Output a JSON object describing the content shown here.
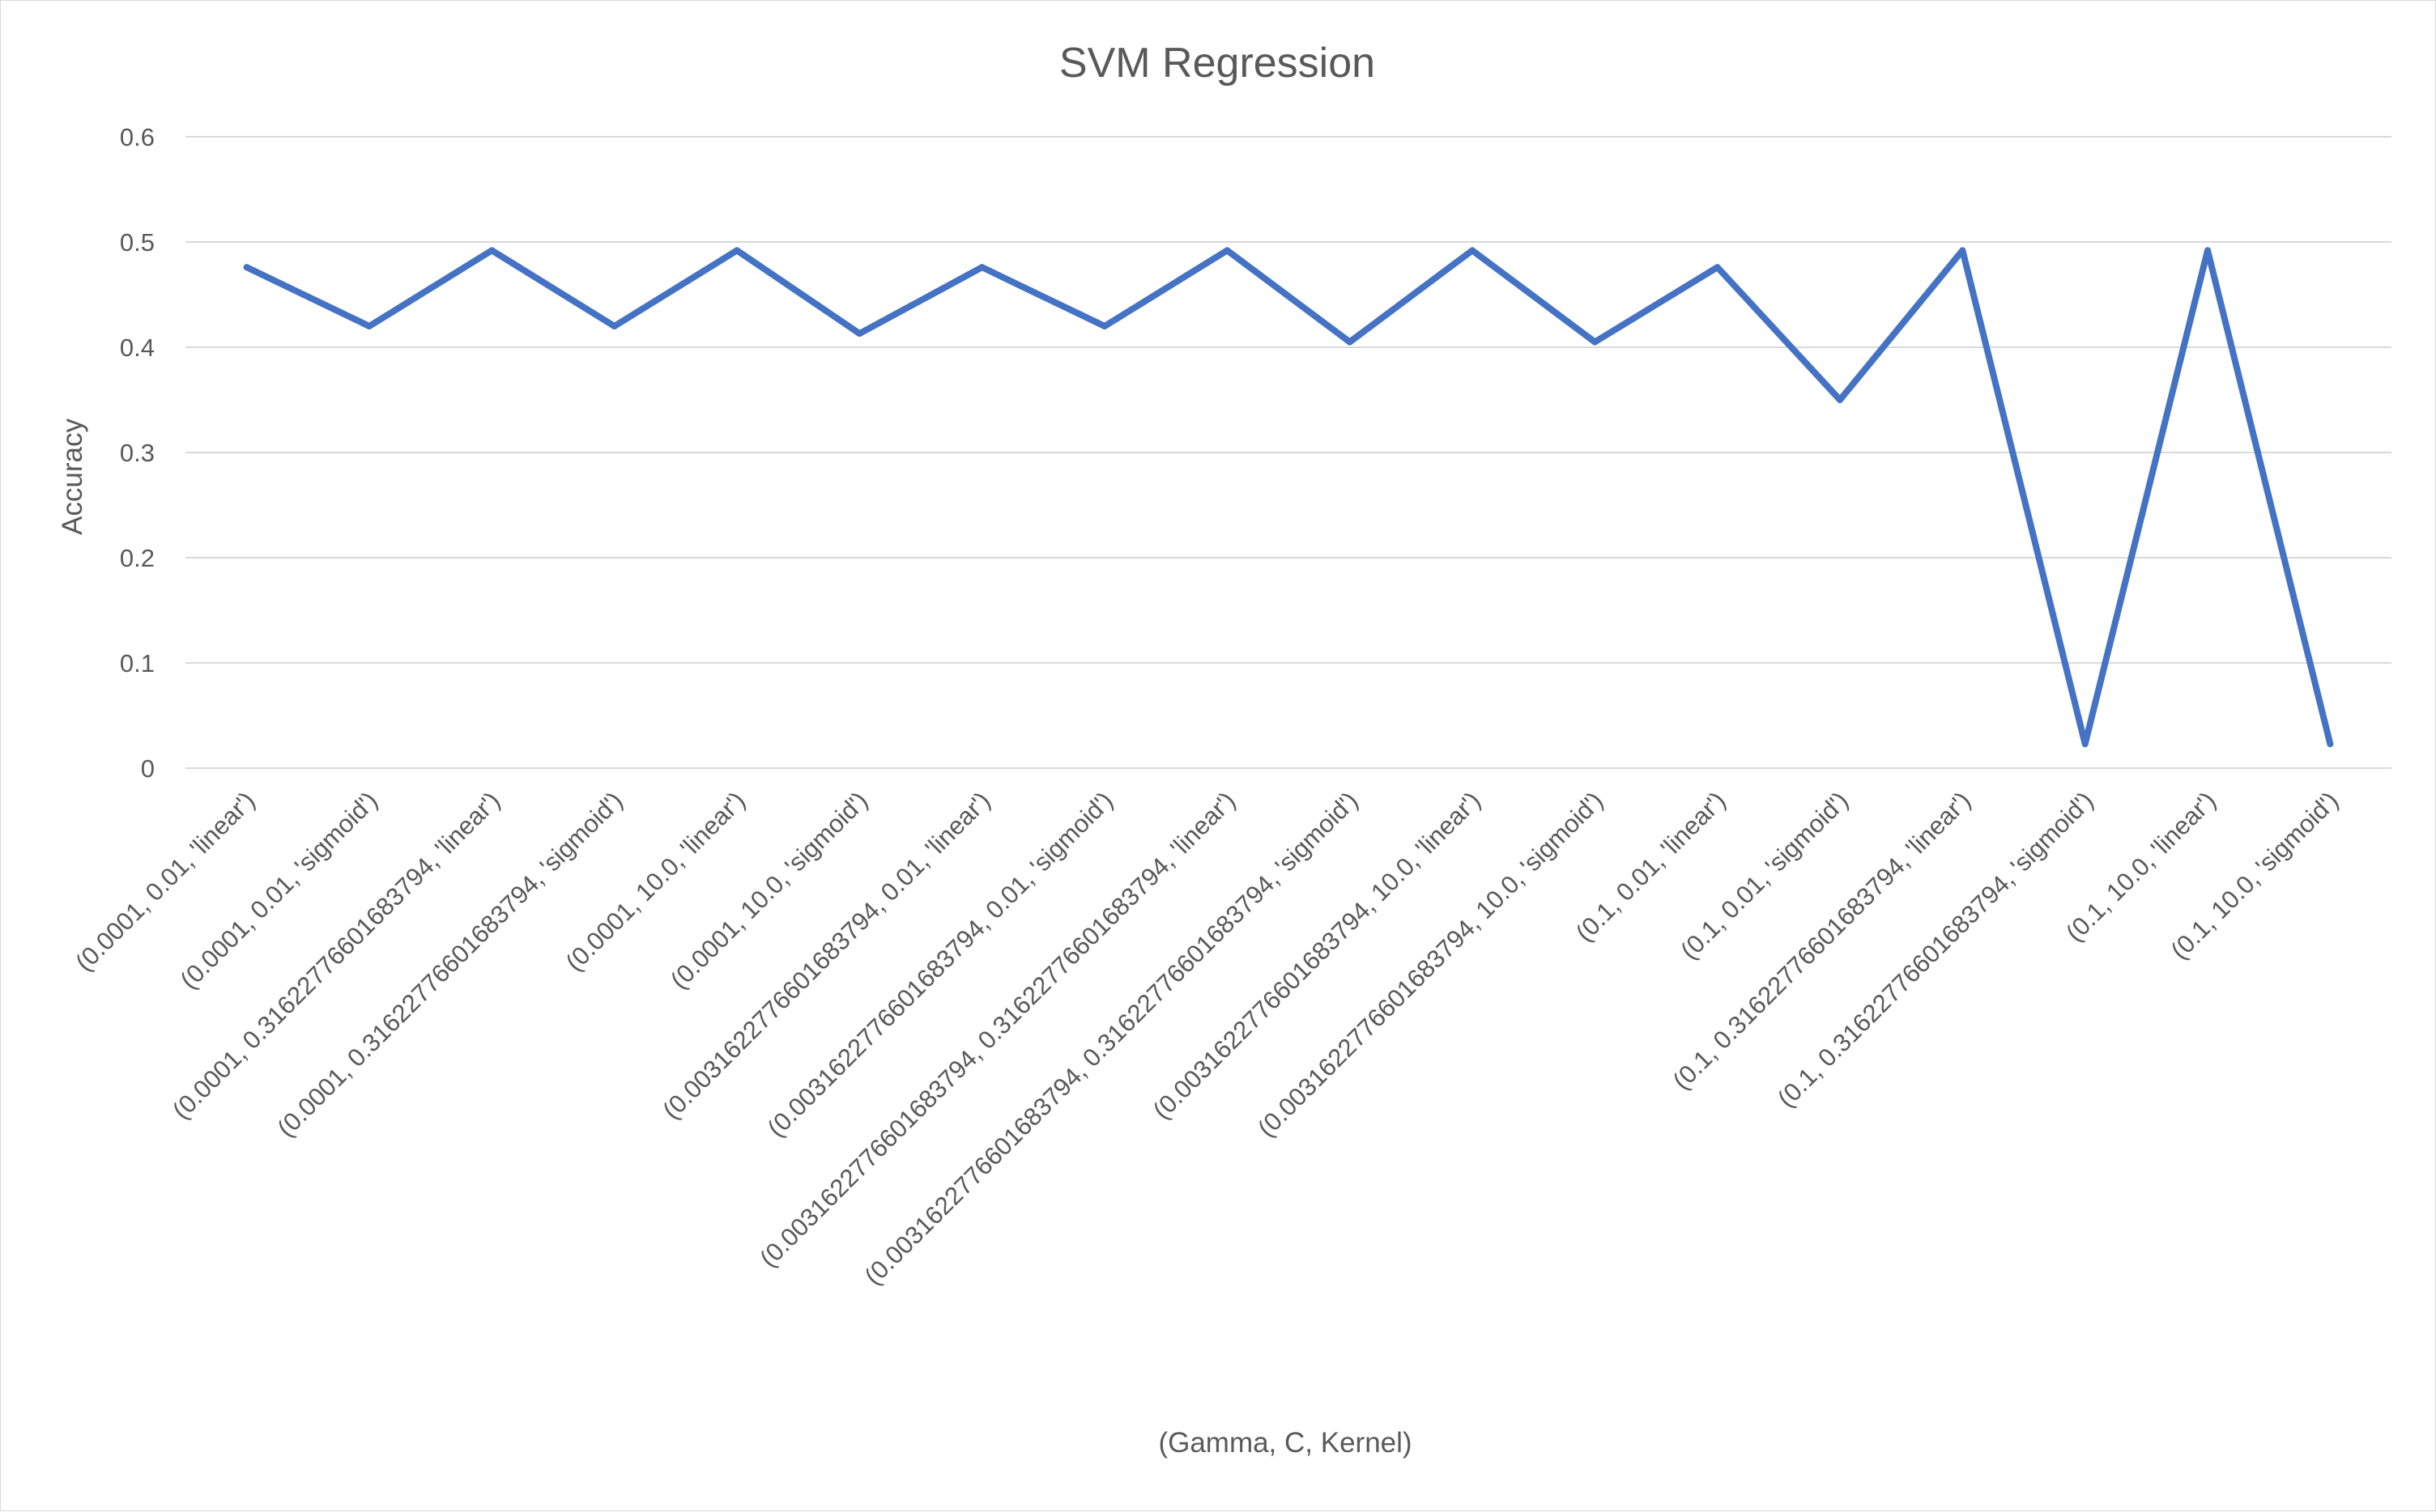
{
  "chart_data": {
    "type": "line",
    "title": "SVM Regression",
    "xlabel": "(Gamma, C, Kernel)",
    "ylabel": "Accuracy",
    "ylim": [
      0,
      0.6
    ],
    "yticks": [
      "0",
      "0.1",
      "0.2",
      "0.3",
      "0.4",
      "0.5",
      "0.6"
    ],
    "grid": true,
    "legend": "none",
    "line_color": "#4472c4",
    "categories": [
      "(0.0001, 0.01, 'linear')",
      "(0.0001, 0.01, 'sigmoid')",
      "(0.0001, 0.31622776601683794, 'linear')",
      "(0.0001, 0.31622776601683794, 'sigmoid')",
      "(0.0001, 10.0, 'linear')",
      "(0.0001, 10.0, 'sigmoid')",
      "(0.0031622776601683794, 0.01, 'linear')",
      "(0.0031622776601683794, 0.01, 'sigmoid')",
      "(0.0031622776601683794, 0.31622776601683794, 'linear')",
      "(0.0031622776601683794, 0.31622776601683794, 'sigmoid')",
      "(0.0031622776601683794, 10.0, 'linear')",
      "(0.0031622776601683794, 10.0, 'sigmoid')",
      "(0.1, 0.01, 'linear')",
      "(0.1, 0.01, 'sigmoid')",
      "(0.1, 0.31622776601683794, 'linear')",
      "(0.1, 0.31622776601683794, 'sigmoid')",
      "(0.1, 10.0, 'linear')",
      "(0.1, 10.0, 'sigmoid')"
    ],
    "series": [
      {
        "values": [
          0.476,
          0.42,
          0.492,
          0.42,
          0.492,
          0.413,
          0.476,
          0.42,
          0.492,
          0.405,
          0.492,
          0.405,
          0.476,
          0.35,
          0.492,
          0.023,
          0.492,
          0.023
        ]
      }
    ]
  }
}
